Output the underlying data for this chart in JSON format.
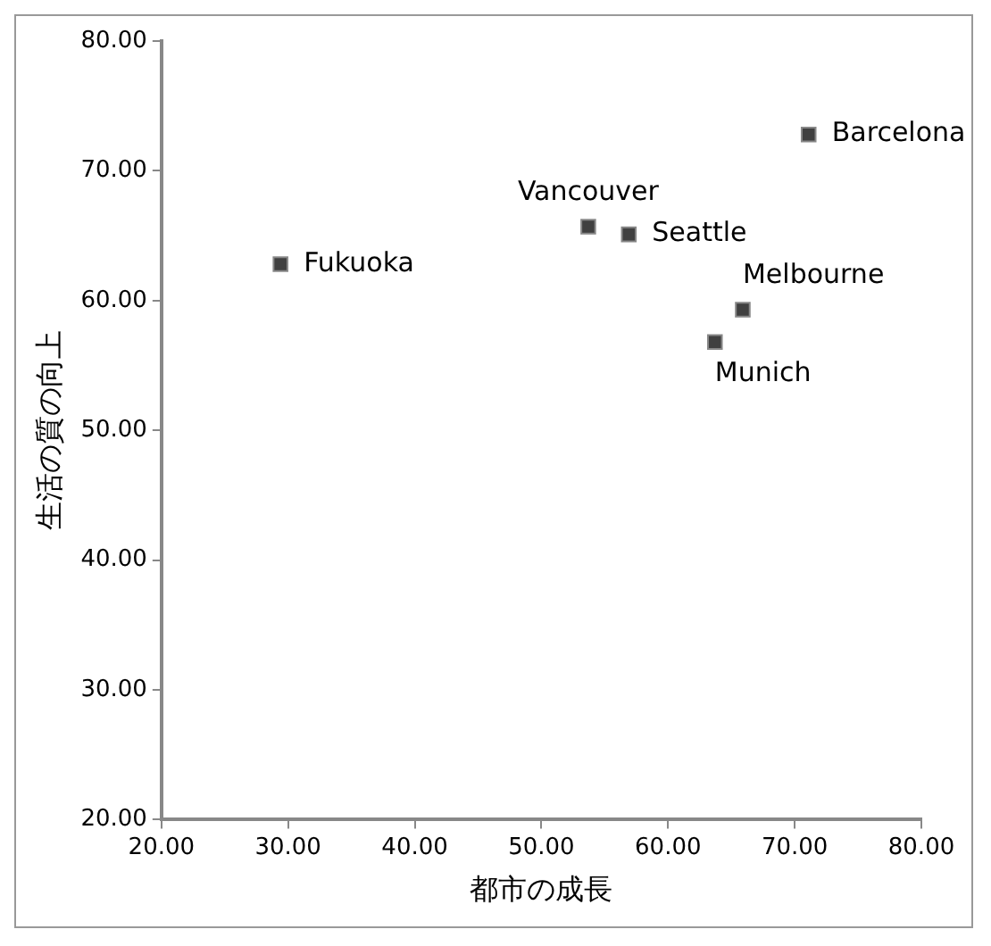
{
  "chart_data": {
    "type": "scatter",
    "xlabel": "都市の成長",
    "ylabel": "生活の質の向上",
    "x": [
      29.4,
      53.7,
      56.9,
      71.1,
      65.9,
      63.7
    ],
    "series": [
      {
        "color": "#404040",
        "values": [
          62.8,
          65.7,
          65.1,
          72.8,
          59.3,
          56.8
        ]
      }
    ],
    "annotations": [
      {
        "text": "Fukuoka",
        "x": 29.4,
        "y": 62.8
      },
      {
        "text": "Vancouver",
        "x": 53.7,
        "y": 65.7
      },
      {
        "text": "Seattle",
        "x": 56.9,
        "y": 65.1
      },
      {
        "text": "Barcelona",
        "x": 71.1,
        "y": 72.8
      },
      {
        "text": "Melbourne",
        "x": 65.9,
        "y": 59.3
      },
      {
        "text": "Munich",
        "x": 63.7,
        "y": 56.8
      }
    ],
    "xlim": [
      20,
      80
    ],
    "ylim": [
      20,
      80
    ],
    "xticks": [
      {
        "value": 20,
        "label": "20.00"
      },
      {
        "value": 30,
        "label": "30.00"
      },
      {
        "value": 40,
        "label": "40.00"
      },
      {
        "value": 50,
        "label": "50.00"
      },
      {
        "value": 60,
        "label": "60.00"
      },
      {
        "value": 70,
        "label": "70.00"
      },
      {
        "value": 80,
        "label": "80.00"
      }
    ],
    "yticks": [
      {
        "value": 20,
        "label": "20.00"
      },
      {
        "value": 30,
        "label": "30.00"
      },
      {
        "value": 40,
        "label": "40.00"
      },
      {
        "value": 50,
        "label": "50.00"
      },
      {
        "value": 60,
        "label": "60.00"
      },
      {
        "value": 70,
        "label": "70.00"
      },
      {
        "value": 80,
        "label": "80.00"
      }
    ],
    "grid": false,
    "legend": false,
    "marker": "square"
  }
}
